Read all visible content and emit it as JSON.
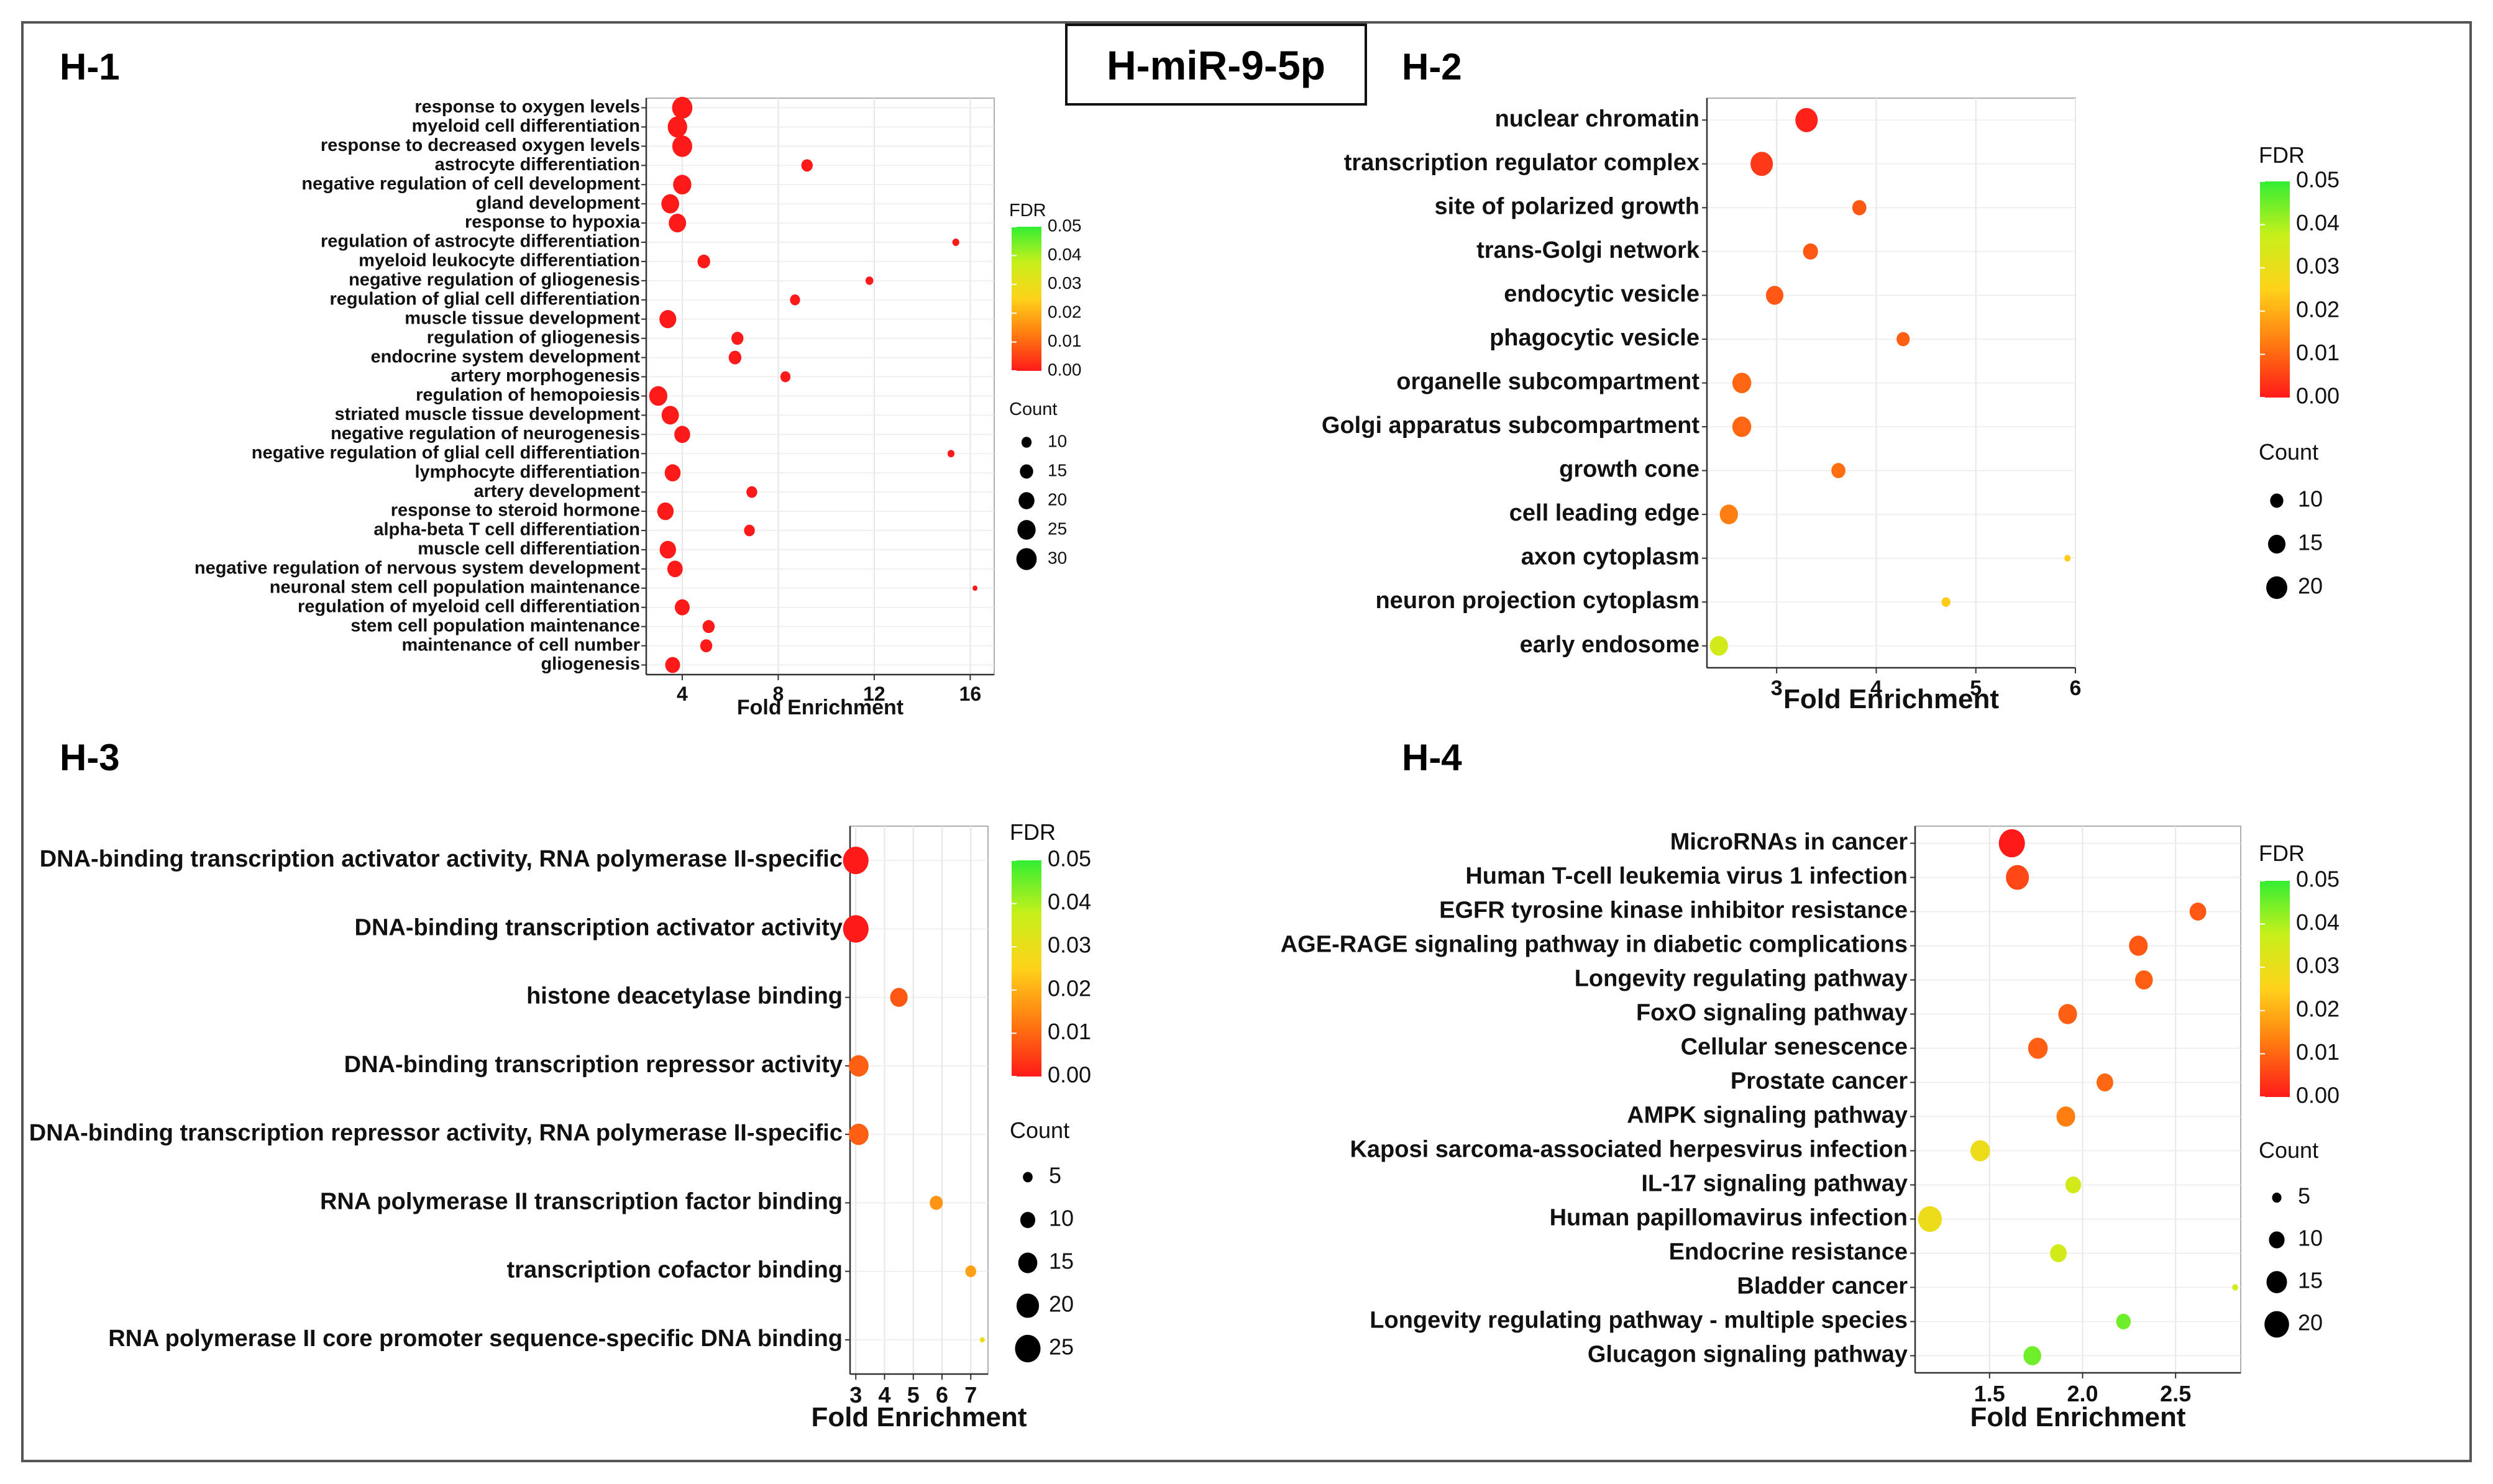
{
  "figure": {
    "title": "H-miR-9-5p",
    "legend_fdr_title": "FDR",
    "legend_count_title": "Count",
    "fdr_gradient_colors": [
      "#ff1a1a",
      "#ff7a10",
      "#ffd21a",
      "#c8f01a",
      "#33ee33"
    ]
  },
  "chart_data": [
    {
      "panel_label": "H-1",
      "type": "scatter",
      "xlabel": "Fold Enrichment",
      "xlim": [
        2.5,
        17
      ],
      "xticks": [
        4,
        8,
        12,
        16
      ],
      "fdr_ticks": [
        "0.05",
        "0.04",
        "0.03",
        "0.02",
        "0.01",
        "0.00"
      ],
      "fdr_max": 0.05,
      "count_legend": [
        10,
        15,
        20,
        25,
        30
      ],
      "count_range": [
        4,
        32
      ],
      "categories": [
        "response to oxygen levels",
        "myeloid cell differentiation",
        "response to decreased oxygen levels",
        "astrocyte differentiation",
        "negative regulation of cell development",
        "gland development",
        "response to hypoxia",
        "regulation of astrocyte differentiation",
        "myeloid leukocyte differentiation",
        "negative regulation of gliogenesis",
        "regulation of glial cell differentiation",
        "muscle tissue development",
        "regulation of gliogenesis",
        "endocrine system development",
        "artery morphogenesis",
        "regulation of hemopoiesis",
        "striated muscle tissue development",
        "negative regulation of neurogenesis",
        "negative regulation of glial cell differentiation",
        "lymphocyte differentiation",
        "artery development",
        "response to steroid hormone",
        "alpha-beta T cell differentiation",
        "muscle cell differentiation",
        "negative regulation of nervous system development",
        "neuronal stem cell population maintenance",
        "regulation of myeloid cell differentiation",
        "stem cell population maintenance",
        "maintenance of cell number",
        "gliogenesis"
      ],
      "x": [
        4.0,
        3.8,
        4.0,
        9.2,
        4.0,
        3.5,
        3.8,
        15.4,
        4.9,
        11.8,
        8.7,
        3.4,
        6.3,
        6.2,
        8.3,
        3.0,
        3.5,
        4.0,
        15.2,
        3.6,
        6.9,
        3.3,
        6.8,
        3.4,
        3.7,
        16.2,
        4.0,
        5.1,
        5.0,
        3.6
      ],
      "count": [
        30,
        28,
        29,
        12,
        25,
        24,
        23,
        6,
        14,
        7,
        10,
        22,
        13,
        14,
        10,
        25,
        23,
        20,
        6,
        20,
        11,
        21,
        11,
        21,
        19,
        4,
        18,
        13,
        13,
        18
      ],
      "fdr": [
        0.0,
        0.0,
        0.0,
        0.0,
        0.0,
        0.0,
        0.0,
        0.0,
        0.0,
        0.0,
        0.0,
        0.0,
        0.0,
        0.0,
        0.0,
        0.0,
        0.0,
        0.0,
        0.0,
        0.0,
        0.0,
        0.0,
        0.0,
        0.0,
        0.0,
        0.0,
        0.0,
        0.0,
        0.0,
        0.0
      ]
    },
    {
      "panel_label": "H-2",
      "type": "scatter",
      "xlabel": "Fold Enrichment",
      "xlim": [
        2.3,
        6.0
      ],
      "xticks": [
        3,
        4,
        5,
        6
      ],
      "fdr_ticks": [
        "0.05",
        "0.04",
        "0.03",
        "0.02",
        "0.01",
        "0.00"
      ],
      "fdr_max": 0.05,
      "count_legend": [
        10,
        15,
        20
      ],
      "count_range": [
        4,
        22
      ],
      "categories": [
        "nuclear chromatin",
        "transcription regulator complex",
        "site of polarized growth",
        "trans-Golgi network",
        "endocytic vesicle",
        "phagocytic vesicle",
        "organelle subcompartment",
        "Golgi apparatus subcompartment",
        "growth cone",
        "cell leading edge",
        "axon cytoplasm",
        "neuron projection cytoplasm",
        "early endosome"
      ],
      "x": [
        3.3,
        2.85,
        3.83,
        3.34,
        2.98,
        4.27,
        2.65,
        2.65,
        3.62,
        2.52,
        5.92,
        4.7,
        2.42
      ],
      "count": [
        22,
        22,
        11,
        12,
        15,
        10,
        17,
        17,
        11,
        16,
        4,
        6,
        16
      ],
      "fdr": [
        0.001,
        0.004,
        0.008,
        0.008,
        0.008,
        0.009,
        0.01,
        0.01,
        0.011,
        0.013,
        0.024,
        0.024,
        0.035
      ]
    },
    {
      "panel_label": "H-3",
      "type": "scatter",
      "xlabel": "Fold Enrichment",
      "xlim": [
        2.8,
        7.6
      ],
      "xticks": [
        3,
        4,
        5,
        6,
        7
      ],
      "fdr_ticks": [
        "0.05",
        "0.04",
        "0.03",
        "0.02",
        "0.01",
        "0.00"
      ],
      "fdr_max": 0.05,
      "count_legend": [
        5,
        10,
        15,
        20,
        25
      ],
      "count_range": [
        2,
        26
      ],
      "categories": [
        "DNA-binding transcription activator activity, RNA polymerase II-specific",
        "DNA-binding transcription activator activity",
        "histone deacetylase binding",
        "DNA-binding transcription repressor activity",
        "DNA-binding transcription repressor activity, RNA polymerase II-specific",
        "RNA polymerase II transcription factor binding",
        "transcription cofactor binding",
        "RNA polymerase II core promoter sequence-specific DNA binding"
      ],
      "x": [
        3.0,
        3.0,
        4.5,
        3.1,
        3.1,
        5.8,
        7.0,
        7.4
      ],
      "count": [
        25,
        25,
        13,
        16,
        16,
        8,
        6,
        2
      ],
      "fdr": [
        0.0,
        0.0,
        0.008,
        0.009,
        0.009,
        0.016,
        0.018,
        0.03
      ]
    },
    {
      "panel_label": "H-4",
      "type": "scatter",
      "xlabel": "Fold Enrichment",
      "xlim": [
        1.1,
        2.85
      ],
      "xticks": [
        1.5,
        2.0,
        2.5
      ],
      "xtick_labels": [
        "1.5",
        "2.0",
        "2.5"
      ],
      "fdr_ticks": [
        "0.05",
        "0.04",
        "0.03",
        "0.02",
        "0.01",
        "0.00"
      ],
      "fdr_max": 0.05,
      "count_legend": [
        5,
        10,
        15,
        20
      ],
      "count_range": [
        2,
        22
      ],
      "categories": [
        "MicroRNAs in cancer",
        "Human T-cell leukemia virus 1 infection",
        "EGFR tyrosine kinase inhibitor resistance",
        "AGE-RAGE signaling pathway in diabetic complications",
        "Longevity regulating pathway",
        "FoxO signaling pathway",
        "Cellular senescence",
        "Prostate cancer",
        "AMPK signaling pathway",
        "Kaposi sarcoma-associated herpesvirus infection",
        "IL-17 signaling pathway",
        "Human papillomavirus infection",
        "Endocrine resistance",
        "Bladder cancer",
        "Longevity regulating pathway - multiple species",
        "Glucagon signaling pathway"
      ],
      "x": [
        1.62,
        1.65,
        2.62,
        2.3,
        2.33,
        1.92,
        1.76,
        2.12,
        1.91,
        1.45,
        1.95,
        1.18,
        1.87,
        2.82,
        2.22,
        1.73
      ],
      "count": [
        22,
        18,
        11,
        13,
        12,
        13,
        14,
        11,
        13,
        14,
        10,
        19,
        11,
        3,
        9,
        12
      ],
      "fdr": [
        0.0,
        0.006,
        0.008,
        0.008,
        0.009,
        0.009,
        0.009,
        0.01,
        0.013,
        0.029,
        0.035,
        0.029,
        0.035,
        0.035,
        0.045,
        0.045
      ]
    }
  ]
}
